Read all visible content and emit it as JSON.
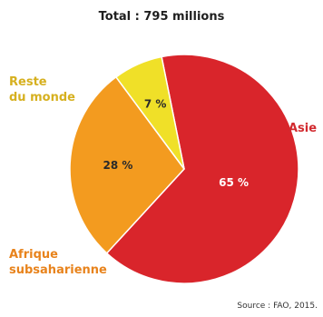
{
  "chart_data": {
    "type": "pie",
    "title": "Total : 795 millions",
    "slices": [
      {
        "label": "Asie",
        "value": 65,
        "value_label": "65 %",
        "color": "#d9252b"
      },
      {
        "label": "Afrique subsaharienne",
        "label_lines": [
          "Afrique",
          "subsaharienne"
        ],
        "value": 28,
        "value_label": "28 %",
        "color": "#f39b1f"
      },
      {
        "label": "Reste du monde",
        "label_lines": [
          "Reste",
          "du monde"
        ],
        "value": 7,
        "value_label": "7 %",
        "color": "#f0e028"
      }
    ],
    "legend": "none",
    "source": "Source : FAO, 2015."
  },
  "colors": {
    "asia_label": "#d22a2f",
    "africa_label": "#e8831c",
    "rest_label": "#d6b01f"
  }
}
